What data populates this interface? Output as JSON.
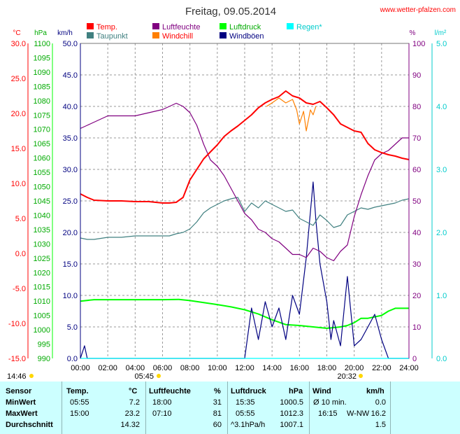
{
  "header": {
    "title": "Freitag, 09.05.2014",
    "site": "www.wetter-pfalzen.com"
  },
  "legend": [
    {
      "label": "Temp.",
      "color": "#ff0000"
    },
    {
      "label": "Luftfeuchte",
      "color": "#800080"
    },
    {
      "label": "Luftdruck",
      "color": "#00ff00"
    },
    {
      "label": "Regen*",
      "color": "#00ffff"
    },
    {
      "label": "Taupunkt",
      "color": "#408080"
    },
    {
      "label": "Windchill",
      "color": "#ff8000"
    },
    {
      "label": "Windböen",
      "color": "#000080"
    }
  ],
  "units": {
    "temp": "°C",
    "pressure": "hPa",
    "wind": "km/h",
    "humidity": "%",
    "rain": "l/m²"
  },
  "markers": {
    "left": "14:46",
    "sunrise": "05:45",
    "sunset": "20:32"
  },
  "chart_data": {
    "type": "line",
    "title": "Freitag, 09.05.2014",
    "x_range": [
      "00:00",
      "24:00"
    ],
    "x_ticks": [
      "00:00",
      "02:00",
      "04:00",
      "06:00",
      "08:00",
      "10:00",
      "12:00",
      "14:00",
      "16:00",
      "18:00",
      "20:00",
      "22:00",
      "24:00"
    ],
    "axes": {
      "temp": {
        "label": "°C",
        "range": [
          -15,
          30
        ],
        "ticks": [
          "30.0",
          "25.0",
          "20.0",
          "15.0",
          "10.0",
          "5.0",
          "0.0",
          "-5.0",
          "-10.0",
          "-15.0"
        ],
        "color": "#ff0000"
      },
      "pressure": {
        "label": "hPa",
        "range": [
          990,
          1100
        ],
        "ticks": [
          "1100",
          "1095",
          "1090",
          "1085",
          "1080",
          "1075",
          "1070",
          "1065",
          "1060",
          "1055",
          "1050",
          "1045",
          "1040",
          "1035",
          "1030",
          "1025",
          "1020",
          "1015",
          "1010",
          "1005",
          "1000",
          "995",
          "990"
        ],
        "color": "#00aa00"
      },
      "wind": {
        "label": "km/h",
        "range": [
          0,
          50
        ],
        "ticks": [
          "50.0",
          "45.0",
          "40.0",
          "35.0",
          "30.0",
          "25.0",
          "20.0",
          "15.0",
          "10.0",
          "5.0",
          "0.0"
        ],
        "color": "#000080"
      },
      "humidity": {
        "label": "%",
        "range": [
          0,
          100
        ],
        "ticks": [
          "100",
          "90",
          "80",
          "70",
          "60",
          "50",
          "40",
          "30",
          "20",
          "10",
          "0"
        ],
        "color": "#800080"
      },
      "rain": {
        "label": "l/m²",
        "range": [
          0,
          5
        ],
        "ticks": [
          "5.0",
          "4.0",
          "3.0",
          "2.0",
          "1.0",
          "0.0"
        ],
        "color": "#00cccc"
      }
    },
    "grid": true,
    "series": [
      {
        "name": "Temp.",
        "axis": "temp",
        "color": "#ff0000",
        "x": [
          0,
          0.5,
          1,
          2,
          3,
          4,
          5,
          5.5,
          6,
          6.5,
          7,
          7.5,
          8,
          8.5,
          9,
          9.5,
          10,
          10.5,
          11,
          11.5,
          12,
          12.5,
          13,
          13.5,
          14,
          14.5,
          15,
          15.5,
          16,
          16.5,
          17,
          17.5,
          18,
          18.5,
          19,
          19.5,
          20,
          20.5,
          21,
          21.5,
          22,
          22.5,
          23,
          23.5,
          24
        ],
        "y": [
          8.5,
          8.0,
          7.6,
          7.5,
          7.5,
          7.4,
          7.4,
          7.3,
          7.2,
          7.2,
          7.3,
          8.0,
          10.5,
          12.0,
          13.5,
          14.5,
          15.5,
          16.7,
          17.5,
          18.2,
          19.0,
          19.8,
          20.8,
          21.5,
          22.0,
          22.4,
          23.2,
          22.5,
          22.2,
          21.5,
          21.3,
          21.7,
          20.8,
          19.8,
          18.5,
          18.0,
          17.5,
          17.3,
          15.7,
          14.8,
          14.4,
          14.1,
          13.9,
          13.6,
          13.4
        ]
      },
      {
        "name": "Luftfeuchte",
        "axis": "humidity",
        "color": "#800080",
        "x": [
          0,
          0.5,
          1,
          1.5,
          2,
          3,
          4,
          5,
          6,
          6.5,
          7,
          7.5,
          8,
          8.5,
          9,
          9.5,
          10,
          10.5,
          11,
          11.5,
          12,
          12.5,
          13,
          13.5,
          14,
          14.5,
          15,
          15.5,
          16,
          16.5,
          17,
          17.5,
          18,
          18.5,
          19,
          19.5,
          20,
          20.5,
          21,
          21.5,
          22,
          22.5,
          23,
          23.5,
          24
        ],
        "y": [
          73,
          74,
          75,
          76,
          77,
          77,
          77,
          78,
          79,
          80,
          81,
          80,
          78,
          74,
          68,
          63,
          61,
          58,
          54,
          50,
          46,
          44,
          41,
          40,
          38,
          37,
          35,
          33,
          33,
          32,
          35,
          34,
          32,
          31,
          34,
          36,
          45,
          52,
          58,
          63,
          65,
          66,
          68,
          70,
          70
        ]
      },
      {
        "name": "Luftdruck",
        "axis": "pressure",
        "color": "#00ff00",
        "x": [
          0,
          1,
          2,
          4,
          6,
          7.2,
          8,
          9,
          10,
          11,
          12,
          13,
          14,
          15,
          16,
          17,
          18,
          19,
          19.5,
          20,
          20.5,
          21,
          22,
          22.5,
          23,
          24
        ],
        "y": [
          1010,
          1010.5,
          1010.5,
          1010.5,
          1010.5,
          1010.6,
          1010.2,
          1009.5,
          1008.8,
          1008,
          1007,
          1005.5,
          1003.5,
          1001.8,
          1001.5,
          1001,
          1000.5,
          1001,
          1001.5,
          1002.5,
          1004,
          1004,
          1005,
          1006.5,
          1007.5,
          1007.5
        ]
      },
      {
        "name": "Taupunkt",
        "axis": "temp",
        "color": "#408080",
        "x": [
          0,
          0.5,
          1,
          2,
          3,
          4,
          5,
          6,
          6.5,
          7,
          7.5,
          8,
          8.5,
          9,
          9.5,
          10,
          10.5,
          11,
          11.5,
          12,
          12.5,
          13,
          13.5,
          14,
          14.5,
          15,
          15.5,
          16,
          16.5,
          17,
          17.5,
          18,
          18.5,
          19,
          19.5,
          20,
          20.5,
          21,
          21.5,
          22,
          22.5,
          23,
          23.5,
          24
        ],
        "y": [
          2.2,
          2.0,
          2.0,
          2.3,
          2.3,
          2.5,
          2.5,
          2.5,
          2.5,
          2.8,
          3.0,
          3.5,
          4.5,
          5.8,
          6.5,
          7.0,
          7.5,
          7.8,
          8.0,
          6.0,
          7.2,
          6.5,
          7.5,
          7.0,
          6.5,
          6.0,
          6.2,
          5.0,
          4.5,
          4.0,
          5.5,
          4.7,
          3.7,
          4.0,
          5.5,
          6.0,
          6.5,
          6.3,
          6.6,
          6.8,
          7.0,
          7.2,
          7.6,
          7.8
        ]
      },
      {
        "name": "Windchill",
        "axis": "temp",
        "color": "#ff8000",
        "x": [
          13.6,
          14.0,
          14.5,
          15.0,
          15.5,
          15.8,
          16.0,
          16.3,
          16.5,
          16.8,
          17.0,
          17.2
        ],
        "y": [
          21.0,
          21.5,
          22.2,
          21.5,
          22.0,
          20.5,
          18.5,
          20.3,
          17.5,
          20.5,
          19.8,
          21.0
        ]
      },
      {
        "name": "Windböen",
        "axis": "wind",
        "color": "#000080",
        "x": [
          0,
          0.3,
          0.5,
          0.7,
          12,
          12.5,
          13,
          13.5,
          14,
          14.5,
          15,
          15.5,
          16,
          16.5,
          17,
          17.2,
          17.5,
          18,
          18.3,
          18.5,
          19,
          19.5,
          20,
          20.5,
          21,
          21.5,
          22,
          22.5,
          23,
          24
        ],
        "y": [
          0,
          2,
          0,
          0,
          0,
          8,
          3,
          9,
          5,
          8,
          3,
          10,
          7,
          16,
          28,
          22,
          15,
          9,
          3,
          6,
          2,
          13,
          2,
          3,
          5,
          7,
          3,
          0,
          0,
          0
        ]
      },
      {
        "name": "Regen*",
        "axis": "rain",
        "color": "#00ffff",
        "x": [
          0,
          24
        ],
        "y": [
          0,
          0
        ]
      }
    ]
  },
  "stats": {
    "columns": {
      "sensor": "Sensor",
      "temp": "Temp.",
      "temp_unit": "°C",
      "humidity": "Luftfeuchte",
      "humidity_unit": "%",
      "pressure": "Luftdruck",
      "pressure_unit": "hPa",
      "wind": "Wind",
      "wind_unit": "km/h"
    },
    "rows": [
      {
        "label": "MinWert",
        "temp_time": "05:55",
        "temp": "7.2",
        "hum_time": "18:00",
        "hum": "31",
        "pres_time": "15:35",
        "pres": "1000.5",
        "wind_label": "Ø 10 min.",
        "wind": "0.0"
      },
      {
        "label": "MaxWert",
        "temp_time": "15:00",
        "temp": "23.2",
        "hum_time": "07:10",
        "hum": "81",
        "pres_time": "05:55",
        "pres": "1012.3",
        "wind_label": "16:15",
        "wind_dir": "W-NW",
        "wind": "16.2"
      },
      {
        "label": "Durchschnitt",
        "temp_time": "",
        "temp": "14.32",
        "hum_time": "",
        "hum": "60",
        "pres_time": "^3.1hPa/h",
        "pres": "1007.1",
        "wind_label": "",
        "wind": "1.5"
      }
    ]
  }
}
